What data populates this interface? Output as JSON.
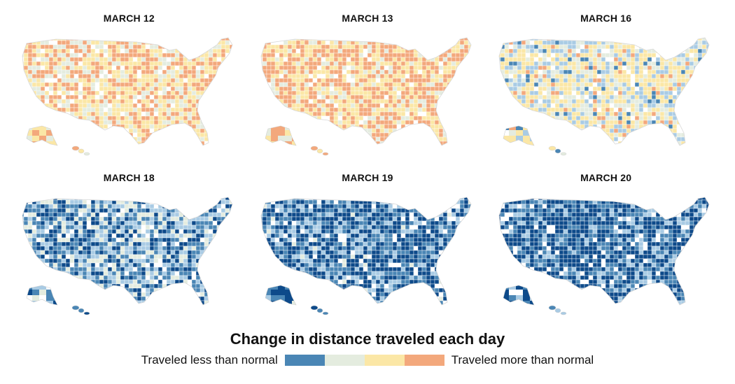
{
  "panels": [
    {
      "title": "MARCH 12",
      "level": -0.35
    },
    {
      "title": "MARCH 13",
      "level": -0.45
    },
    {
      "title": "MARCH 16",
      "level": -0.05
    },
    {
      "title": "MARCH 18",
      "level": 0.45
    },
    {
      "title": "MARCH 19",
      "level": 0.65
    },
    {
      "title": "MARCH 20",
      "level": 0.75
    }
  ],
  "legend": {
    "title": "Change in distance traveled each day",
    "left_label": "Traveled less than normal",
    "right_label": "Traveled more than normal",
    "colors": [
      "#4a86b5",
      "#e4ecdf",
      "#fbe7a6",
      "#f3a87c"
    ]
  },
  "palette": {
    "less_strong": "#0d4a8a",
    "less": "#4a86b5",
    "less_light": "#a9cbe4",
    "neutral": "#e4ecdf",
    "more_light": "#fbe7a6",
    "more": "#f3a87c",
    "no_data": "#ffffff"
  }
}
